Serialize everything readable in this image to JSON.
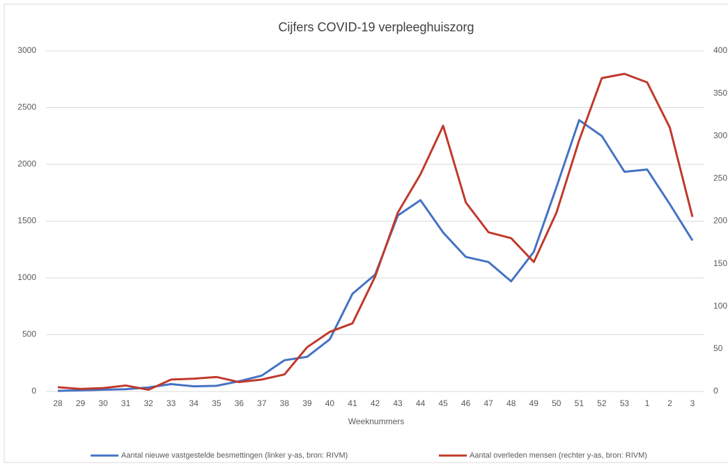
{
  "chart_data": {
    "type": "line",
    "title": "Cijfers COVID-19 verpleeghuiszorg",
    "x_label": "Weeknummers",
    "categories": [
      "28",
      "29",
      "30",
      "31",
      "32",
      "33",
      "34",
      "35",
      "36",
      "37",
      "38",
      "39",
      "40",
      "41",
      "42",
      "43",
      "44",
      "45",
      "46",
      "47",
      "48",
      "49",
      "50",
      "51",
      "52",
      "53",
      "1",
      "2",
      "3"
    ],
    "series": [
      {
        "name": "Aantal nieuwe vastgestelde besmettingen  (linker y-as, bron: RIVM)",
        "color": "#4472c4",
        "axis": "y",
        "values": [
          5,
          10,
          15,
          20,
          35,
          65,
          45,
          50,
          90,
          140,
          275,
          305,
          460,
          860,
          1030,
          1550,
          1685,
          1400,
          1185,
          1140,
          970,
          1230,
          1800,
          2390,
          2250,
          1935,
          1955,
          1650,
          1330
        ]
      },
      {
        "name": "Aantal overleden mensen  (rechter y-as, bron: RIVM)",
        "color": "#c0392b",
        "axis": "y2",
        "values": [
          5,
          3,
          4,
          7,
          2,
          14,
          15,
          17,
          11,
          14,
          20,
          52,
          70,
          80,
          135,
          210,
          255,
          312,
          222,
          187,
          180,
          152,
          210,
          295,
          368,
          373,
          363,
          310,
          205
        ]
      }
    ],
    "ylim": [
      0,
      3000
    ],
    "yticks": [
      0,
      500,
      1000,
      1500,
      2000,
      2500,
      3000
    ],
    "y2lim": [
      0,
      400
    ],
    "y2ticks": [
      0,
      50,
      100,
      150,
      200,
      250,
      300,
      350,
      400
    ],
    "grid": true,
    "legend": "bottom"
  }
}
